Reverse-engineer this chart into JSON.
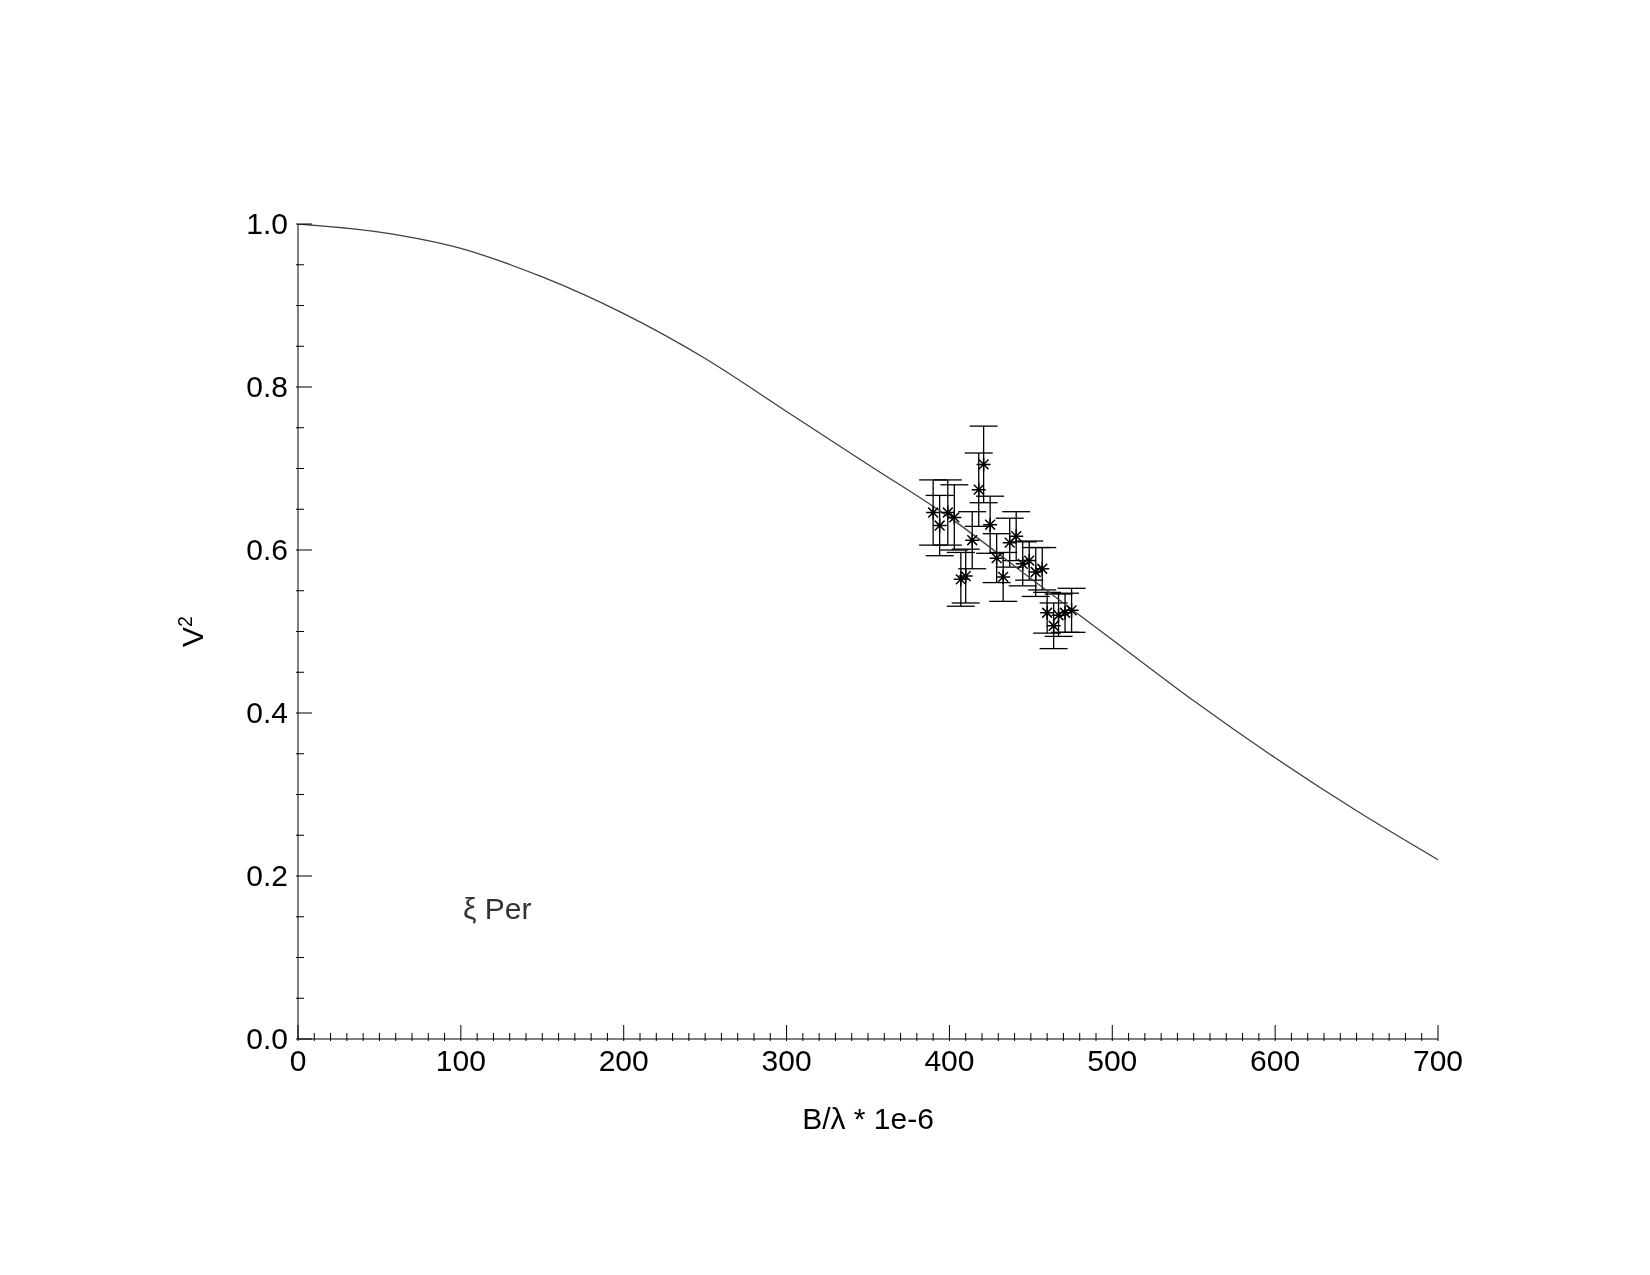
{
  "chart_data": {
    "type": "scatter",
    "xlabel": "B/λ * 1e-6",
    "ylabel": "V$^{2}$",
    "annotations": [
      "ξ Per"
    ],
    "xlim": [
      0,
      700
    ],
    "ylim": [
      0,
      1
    ],
    "xticks": [
      0,
      {
        "value": 10,
        "label": null
      },
      {
        "value": 20,
        "label": null
      },
      {
        "value": 30,
        "label": null
      },
      {
        "value": 40,
        "label": null
      },
      {
        "value": 50,
        "label": null
      },
      {
        "value": 60,
        "label": null
      },
      {
        "value": 70,
        "label": null
      },
      {
        "value": 80,
        "label": null
      },
      {
        "value": 90,
        "label": null
      },
      100,
      {
        "value": 110,
        "label": null
      },
      {
        "value": 120,
        "label": null
      },
      {
        "value": 130,
        "label": null
      },
      {
        "value": 140,
        "label": null
      },
      {
        "value": 150,
        "label": null
      },
      {
        "value": 160,
        "label": null
      },
      {
        "value": 170,
        "label": null
      },
      {
        "value": 180,
        "label": null
      },
      {
        "value": 190,
        "label": null
      },
      200,
      {
        "value": 210,
        "label": null
      },
      {
        "value": 220,
        "label": null
      },
      {
        "value": 230,
        "label": null
      },
      {
        "value": 240,
        "label": null
      },
      {
        "value": 250,
        "label": null
      },
      {
        "value": 260,
        "label": null
      },
      {
        "value": 270,
        "label": null
      },
      {
        "value": 280,
        "label": null
      },
      {
        "value": 290,
        "label": null
      },
      300,
      {
        "value": 310,
        "label": null
      },
      {
        "value": 320,
        "label": null
      },
      {
        "value": 330,
        "label": null
      },
      {
        "value": 340,
        "label": null
      },
      {
        "value": 350,
        "label": null
      },
      {
        "value": 360,
        "label": null
      },
      {
        "value": 370,
        "label": null
      },
      {
        "value": 380,
        "label": null
      },
      {
        "value": 390,
        "label": null
      },
      400,
      {
        "value": 410,
        "label": null
      },
      {
        "value": 420,
        "label": null
      },
      {
        "value": 430,
        "label": null
      },
      {
        "value": 440,
        "label": null
      },
      {
        "value": 450,
        "label": null
      },
      {
        "value": 460,
        "label": null
      },
      {
        "value": 470,
        "label": null
      },
      {
        "value": 480,
        "label": null
      },
      {
        "value": 490,
        "label": null
      },
      500,
      {
        "value": 510,
        "label": null
      },
      {
        "value": 520,
        "label": null
      },
      {
        "value": 530,
        "label": null
      },
      {
        "value": 540,
        "label": null
      },
      {
        "value": 550,
        "label": null
      },
      {
        "value": 560,
        "label": null
      },
      {
        "value": 570,
        "label": null
      },
      {
        "value": 580,
        "label": null
      },
      {
        "value": 590,
        "label": null
      },
      600,
      {
        "value": 610,
        "label": null
      },
      {
        "value": 620,
        "label": null
      },
      {
        "value": 630,
        "label": null
      },
      {
        "value": 640,
        "label": null
      },
      {
        "value": 650,
        "label": null
      },
      {
        "value": 660,
        "label": null
      },
      {
        "value": 670,
        "label": null
      },
      {
        "value": 680,
        "label": null
      },
      {
        "value": 690,
        "label": null
      },
      700
    ],
    "yticks": [
      {
        "value": 0,
        "label": "0.0"
      },
      {
        "value": 0.05,
        "label": null
      },
      {
        "value": 0.1,
        "label": null
      },
      {
        "value": 0.15,
        "label": null
      },
      {
        "value": 0.2,
        "label": "0.2"
      },
      {
        "value": 0.25,
        "label": null
      },
      {
        "value": 0.3,
        "label": null
      },
      {
        "value": 0.35,
        "label": null
      },
      {
        "value": 0.4,
        "label": "0.4"
      },
      {
        "value": 0.45,
        "label": null
      },
      {
        "value": 0.5,
        "label": null
      },
      {
        "value": 0.55,
        "label": null
      },
      {
        "value": 0.6,
        "label": "0.6"
      },
      {
        "value": 0.65,
        "label": null
      },
      {
        "value": 0.7,
        "label": null
      },
      {
        "value": 0.75,
        "label": null
      },
      {
        "value": 0.8,
        "label": "0.8"
      },
      {
        "value": 0.85,
        "label": null
      },
      {
        "value": 0.9,
        "label": null
      },
      {
        "value": 0.95,
        "label": null
      },
      {
        "value": 1,
        "label": "1.0"
      }
    ],
    "series": [
      {
        "color": "#000000",
        "marker": "cross",
        "x": [
          390,
          394,
          399,
          403,
          407,
          410,
          414,
          418,
          421,
          425,
          429,
          433,
          437,
          441,
          445,
          449,
          453,
          457,
          460,
          464,
          467,
          471,
          475
        ],
        "values": [
          0.646,
          0.63,
          0.646,
          0.64,
          0.564,
          0.568,
          0.612,
          0.674,
          0.705,
          0.631,
          0.59,
          0.567,
          0.609,
          0.617,
          0.583,
          0.587,
          0.573,
          0.577,
          0.523,
          0.507,
          0.52,
          0.523,
          0.526
        ],
        "errors": [
          0.04,
          0.037,
          0.04,
          0.04,
          0.033,
          0.033,
          0.035,
          0.045,
          0.047,
          0.035,
          0.03,
          0.03,
          0.03,
          0.03,
          0.027,
          0.024,
          0.03,
          0.026,
          0.025,
          0.028,
          0.026,
          0.024,
          0.027
        ]
      },
      {
        "type": "line",
        "color": "#404040",
        "marker": "none",
        "line_style": "solid",
        "x": [
          0,
          50,
          100,
          150,
          200,
          250,
          300,
          350,
          400,
          450,
          500,
          550,
          600,
          650,
          700
        ],
        "values": [
          1.0,
          0.99,
          0.97,
          0.935,
          0.89,
          0.835,
          0.77,
          0.705,
          0.64,
          0.565,
          0.49,
          0.415,
          0.345,
          0.28,
          0.22
        ]
      }
    ]
  }
}
